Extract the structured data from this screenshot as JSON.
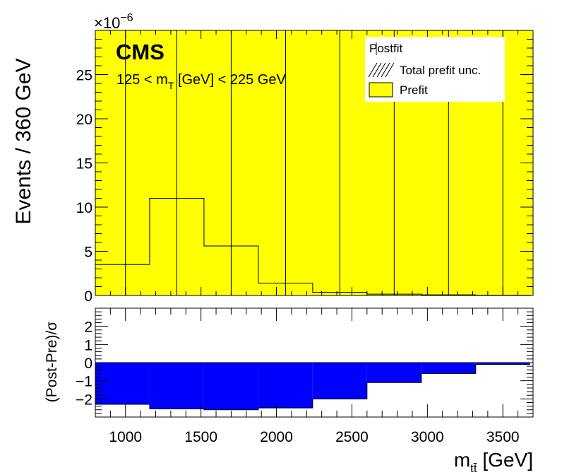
{
  "chart_data": [
    {
      "type": "bar",
      "panel": "upper",
      "cms_label": "CMS",
      "annotation": "125 < m_T [GeV] < 225 GeV",
      "annotation_parts": {
        "pre": "125 < m",
        "sub": "T",
        "post": " [GeV] < 225 GeV"
      },
      "ylabel": "Events / 360 GeV",
      "exponent": {
        "base": "×10",
        "power": "−6"
      },
      "xlim": [
        800,
        3700
      ],
      "ylim": [
        0,
        30
      ],
      "yticks": [
        0,
        5,
        10,
        15,
        20,
        25
      ],
      "bin_edges": [
        800,
        1160,
        1520,
        1880,
        2240,
        2600,
        2960,
        3320,
        3680
      ],
      "series": [
        {
          "name": "Postfit",
          "values": [
            3.5,
            11.0,
            5.6,
            1.4,
            0.35,
            0.15,
            0.07,
            0.03
          ]
        },
        {
          "name": "Prefit",
          "color": "#ffff00",
          "values": [
            30,
            30,
            30,
            30,
            30,
            30,
            30,
            30
          ]
        }
      ],
      "vertical_lines": [
        1000,
        1340,
        1700,
        2060,
        2420,
        2780,
        3140,
        3500
      ],
      "legend": {
        "placement": "top-right",
        "entries": [
          {
            "label": "Postfit",
            "style": "marker"
          },
          {
            "label": "Total prefit unc.",
            "style": "hatch"
          },
          {
            "label": "Prefit",
            "style": "fill",
            "color": "#ffff00"
          }
        ]
      }
    },
    {
      "type": "bar",
      "panel": "ratio",
      "ylabel": "(Post-Pre)/σ",
      "xlabel": {
        "main": "m",
        "sub": "tt̄",
        "unit": " [GeV]"
      },
      "xlim": [
        800,
        3700
      ],
      "ylim": [
        -3,
        3
      ],
      "yticks": [
        -2,
        -1,
        0,
        1,
        2
      ],
      "xticks": [
        1000,
        1500,
        2000,
        2500,
        3000,
        3500
      ],
      "bin_edges": [
        800,
        1160,
        1520,
        1880,
        2240,
        2600,
        2960,
        3320,
        3680
      ],
      "series": [
        {
          "name": "",
          "color": "#0000ff",
          "values": [
            -2.3,
            -2.55,
            -2.6,
            -2.5,
            -2.0,
            -1.1,
            -0.6,
            -0.1
          ]
        }
      ]
    }
  ]
}
